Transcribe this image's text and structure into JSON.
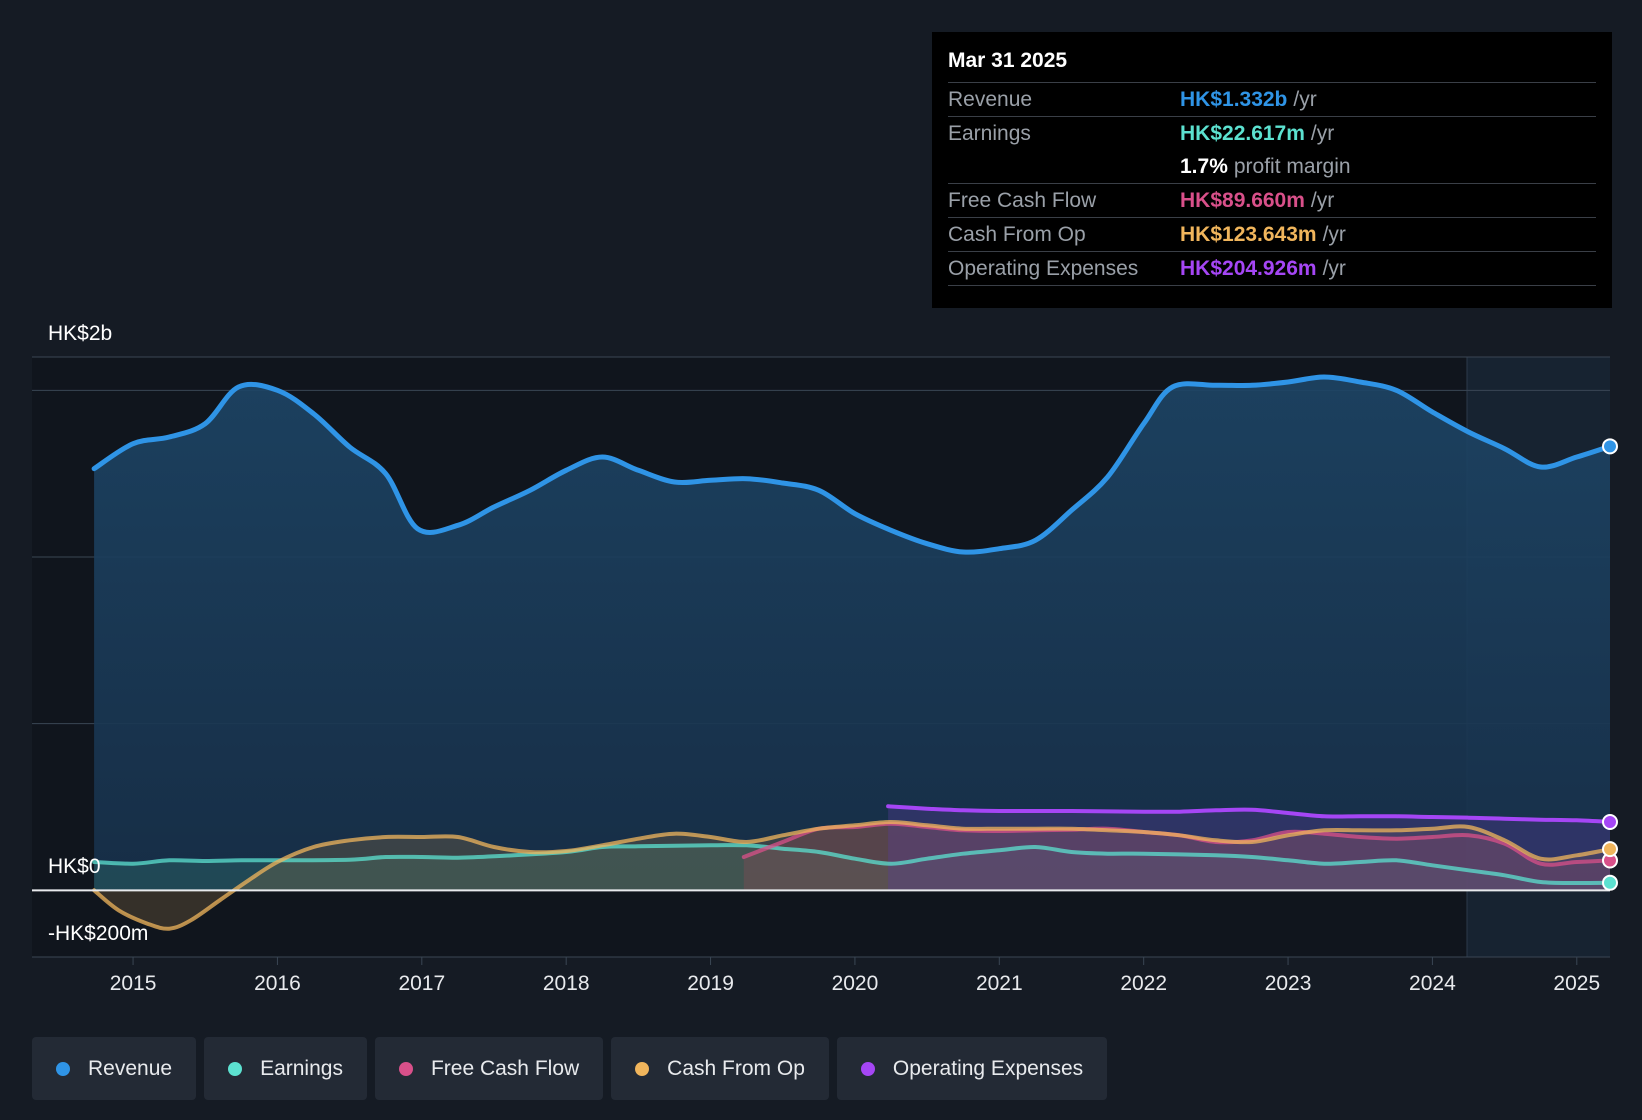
{
  "tooltip": {
    "date": "Mar 31 2025",
    "rows": [
      {
        "label": "Revenue",
        "value": "HK$1.332b",
        "unit": "/yr",
        "color": "#2f94e6"
      },
      {
        "label": "Earnings",
        "value": "HK$22.617m",
        "unit": "/yr",
        "color": "#5ce1d0"
      },
      {
        "label": "",
        "value": "1.7%",
        "unit": "profit margin",
        "color": "#ffffff"
      },
      {
        "label": "Free Cash Flow",
        "value": "HK$89.660m",
        "unit": "/yr",
        "color": "#d9508a"
      },
      {
        "label": "Cash From Op",
        "value": "HK$123.643m",
        "unit": "/yr",
        "color": "#f0b55c"
      },
      {
        "label": "Operating Expenses",
        "value": "HK$204.926m",
        "unit": "/yr",
        "color": "#a546f5"
      }
    ]
  },
  "legend": [
    {
      "label": "Revenue",
      "color": "#2f94e6"
    },
    {
      "label": "Earnings",
      "color": "#5ce1d0"
    },
    {
      "label": "Free Cash Flow",
      "color": "#d9508a"
    },
    {
      "label": "Cash From Op",
      "color": "#f0b55c"
    },
    {
      "label": "Operating Expenses",
      "color": "#a546f5"
    }
  ],
  "chart_data": {
    "type": "line",
    "y_tick_labels": [
      "HK$2b",
      "HK$0",
      "-HK$200m"
    ],
    "x_tick_labels": [
      "2015",
      "2016",
      "2017",
      "2018",
      "2019",
      "2020",
      "2021",
      "2022",
      "2023",
      "2024",
      "2025"
    ],
    "x_ticks": [
      2015,
      2016,
      2017,
      2018,
      2019,
      2020,
      2021,
      2022,
      2023,
      2024,
      2025
    ],
    "xlim": [
      2014.3,
      2025.23
    ],
    "ylim": [
      -200,
      1600
    ],
    "units": "HK$m",
    "forecast_start": 2024.25,
    "series": [
      {
        "name": "Revenue",
        "color": "#2f94e6",
        "fill": true,
        "x": [
          2014.73,
          2015.0,
          2015.25,
          2015.5,
          2015.73,
          2016.0,
          2016.25,
          2016.5,
          2016.75,
          2016.97,
          2017.25,
          2017.5,
          2017.75,
          2018.0,
          2018.25,
          2018.5,
          2018.75,
          2019.0,
          2019.25,
          2019.5,
          2019.75,
          2020.0,
          2020.25,
          2020.5,
          2020.75,
          2021.0,
          2021.25,
          2021.5,
          2021.75,
          2022.0,
          2022.2,
          2022.5,
          2022.75,
          2023.0,
          2023.25,
          2023.5,
          2023.75,
          2024.0,
          2024.25,
          2024.5,
          2024.75,
          2025.0,
          2025.23
        ],
        "y": [
          1265,
          1340,
          1360,
          1400,
          1510,
          1500,
          1430,
          1330,
          1250,
          1085,
          1095,
          1150,
          1200,
          1260,
          1300,
          1260,
          1225,
          1230,
          1235,
          1222,
          1200,
          1130,
          1080,
          1040,
          1015,
          1025,
          1050,
          1140,
          1240,
          1400,
          1510,
          1515,
          1515,
          1525,
          1540,
          1525,
          1500,
          1435,
          1375,
          1325,
          1270,
          1300,
          1332
        ]
      },
      {
        "name": "Earnings",
        "color": "#5ce1d0",
        "fill": true,
        "x": [
          2014.73,
          2015.0,
          2015.25,
          2015.5,
          2015.75,
          2016.0,
          2016.5,
          2016.75,
          2017.0,
          2017.25,
          2017.5,
          2018.0,
          2018.25,
          2018.5,
          2019.0,
          2019.25,
          2019.5,
          2019.75,
          2020.0,
          2020.25,
          2020.5,
          2020.75,
          2021.0,
          2021.25,
          2021.5,
          2021.75,
          2022.0,
          2022.5,
          2022.75,
          2023.0,
          2023.25,
          2023.5,
          2023.75,
          2024.0,
          2024.25,
          2024.5,
          2024.75,
          2025.0,
          2025.23
        ],
        "y": [
          85,
          80,
          90,
          88,
          90,
          90,
          92,
          100,
          100,
          98,
          102,
          115,
          130,
          132,
          135,
          135,
          125,
          115,
          95,
          80,
          95,
          110,
          120,
          130,
          115,
          110,
          110,
          105,
          100,
          90,
          80,
          85,
          90,
          75,
          60,
          45,
          25,
          22,
          22.617
        ]
      },
      {
        "name": "Free Cash Flow",
        "color": "#d9508a",
        "fill": true,
        "x": [
          2019.23,
          2019.5,
          2019.75,
          2020.0,
          2020.25,
          2020.5,
          2020.75,
          2021.0,
          2021.25,
          2021.5,
          2021.75,
          2022.0,
          2022.25,
          2022.5,
          2022.75,
          2023.0,
          2023.25,
          2023.5,
          2023.75,
          2024.0,
          2024.25,
          2024.5,
          2024.75,
          2025.0,
          2025.23
        ],
        "y": [
          100,
          145,
          185,
          190,
          200,
          190,
          180,
          178,
          180,
          182,
          185,
          175,
          165,
          145,
          150,
          175,
          170,
          160,
          155,
          160,
          165,
          140,
          80,
          85,
          89.66
        ]
      },
      {
        "name": "Cash From Op",
        "color": "#f0b55c",
        "fill": true,
        "x": [
          2014.73,
          2014.9,
          2015.1,
          2015.25,
          2015.4,
          2015.6,
          2015.8,
          2016.0,
          2016.25,
          2016.5,
          2016.75,
          2017.0,
          2017.25,
          2017.5,
          2017.75,
          2018.0,
          2018.25,
          2018.5,
          2018.75,
          2019.0,
          2019.25,
          2019.5,
          2019.75,
          2020.0,
          2020.25,
          2020.5,
          2020.75,
          2021.0,
          2021.25,
          2021.5,
          2021.75,
          2022.0,
          2022.25,
          2022.5,
          2022.75,
          2023.0,
          2023.25,
          2023.5,
          2023.75,
          2024.0,
          2024.25,
          2024.5,
          2024.75,
          2025.0,
          2025.23
        ],
        "y": [
          0,
          -60,
          -100,
          -115,
          -90,
          -30,
          30,
          85,
          130,
          150,
          160,
          160,
          160,
          130,
          115,
          118,
          135,
          155,
          170,
          160,
          145,
          165,
          185,
          195,
          205,
          195,
          185,
          185,
          185,
          185,
          180,
          175,
          165,
          150,
          145,
          165,
          180,
          180,
          180,
          185,
          190,
          150,
          95,
          105,
          123.643
        ]
      },
      {
        "name": "Operating Expenses",
        "color": "#a546f5",
        "fill": true,
        "x": [
          2020.23,
          2020.5,
          2020.75,
          2021.0,
          2021.5,
          2022.0,
          2022.25,
          2022.5,
          2022.75,
          2023.0,
          2023.25,
          2023.5,
          2023.75,
          2024.0,
          2024.25,
          2024.5,
          2024.75,
          2025.0,
          2025.23
        ],
        "y": [
          252,
          245,
          240,
          238,
          238,
          236,
          236,
          240,
          242,
          232,
          222,
          222,
          222,
          220,
          218,
          215,
          212,
          210,
          204.926
        ]
      }
    ]
  }
}
